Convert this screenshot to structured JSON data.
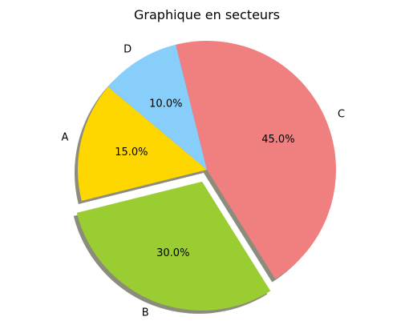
{
  "chart_data": {
    "type": "pie",
    "title": "Graphique en secteurs",
    "categories": [
      "A",
      "B",
      "C",
      "D"
    ],
    "values": [
      15,
      30,
      45,
      10
    ],
    "value_labels": [
      "15.0%",
      "30.0%",
      "45.0%",
      "10.0%"
    ],
    "colors": [
      "#ffd700",
      "#9acd32",
      "#f08080",
      "#87cefa"
    ],
    "explode": [
      0,
      0.1,
      0,
      0
    ],
    "start_angle_deg": 140,
    "shadow": true,
    "shadow_color": "#8c8c7d",
    "direction": "counterclockwise"
  }
}
